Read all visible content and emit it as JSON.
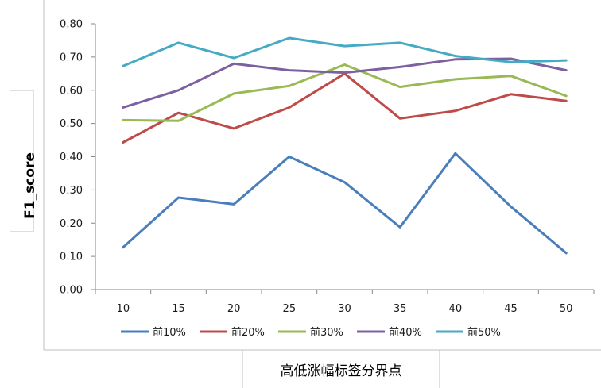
{
  "chart_data": {
    "type": "line",
    "title": "",
    "xlabel": "高低涨幅标签分界点",
    "ylabel": "F1_score",
    "x": [
      10,
      15,
      20,
      25,
      30,
      35,
      40,
      45,
      50
    ],
    "ylim": [
      0,
      0.8
    ],
    "yticks": [
      "0.00",
      "0.10",
      "0.20",
      "0.30",
      "0.40",
      "0.50",
      "0.60",
      "0.70",
      "0.80"
    ],
    "grid": false,
    "legend_position": "bottom",
    "series": [
      {
        "name": "前10%",
        "color": "#4a7ebb",
        "values": [
          0.127,
          0.277,
          0.257,
          0.4,
          0.323,
          0.188,
          0.41,
          0.25,
          0.11
        ]
      },
      {
        "name": "前20%",
        "color": "#be4b48",
        "values": [
          0.443,
          0.532,
          0.485,
          0.548,
          0.65,
          0.515,
          0.538,
          0.588,
          0.568
        ]
      },
      {
        "name": "前30%",
        "color": "#98b954",
        "values": [
          0.51,
          0.508,
          0.59,
          0.613,
          0.677,
          0.61,
          0.633,
          0.643,
          0.583
        ]
      },
      {
        "name": "前40%",
        "color": "#7d60a0",
        "values": [
          0.548,
          0.6,
          0.68,
          0.66,
          0.653,
          0.67,
          0.693,
          0.695,
          0.66
        ]
      },
      {
        "name": "前50%",
        "color": "#46aac5",
        "values": [
          0.673,
          0.743,
          0.697,
          0.757,
          0.733,
          0.743,
          0.703,
          0.685,
          0.69
        ]
      }
    ]
  }
}
